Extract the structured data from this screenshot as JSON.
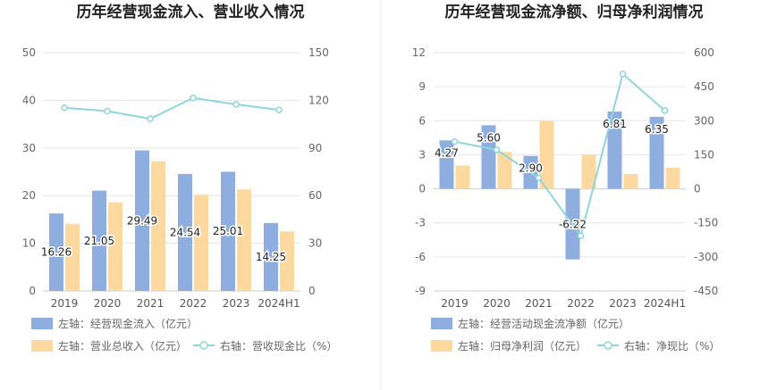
{
  "chart_data": [
    {
      "type": "bar",
      "title": "历年经营现金流入、营业收入情况",
      "categories": [
        "2019",
        "2020",
        "2021",
        "2022",
        "2023",
        "2024H1"
      ],
      "left_axis": {
        "ticks": [
          "0",
          "10",
          "20",
          "30",
          "40",
          "50"
        ],
        "ylim": [
          0,
          50
        ]
      },
      "right_axis": {
        "ticks": [
          "0",
          "30",
          "60",
          "90",
          "120",
          "150"
        ],
        "ylim": [
          0,
          150
        ]
      },
      "series": [
        {
          "name": "左轴：经营现金流入（亿元）",
          "kind": "bar",
          "axis": "left",
          "color": "#8eaedf",
          "values": [
            16.26,
            21.05,
            29.49,
            24.54,
            25.01,
            14.25
          ],
          "labels": [
            "16.26",
            "21.05",
            "29.49",
            "24.54",
            "25.01",
            "14.25"
          ]
        },
        {
          "name": "左轴：营业总收入（亿元）",
          "kind": "bar",
          "axis": "left",
          "color": "#fdd9a0",
          "values": [
            14.1,
            18.6,
            27.2,
            20.2,
            21.3,
            12.5
          ]
        },
        {
          "name": "右轴：营收现金比（%）",
          "kind": "line",
          "axis": "right",
          "color": "#8fd6dc",
          "values": [
            115.3,
            113.2,
            108.4,
            121.5,
            117.4,
            114.0
          ]
        }
      ],
      "grid": true,
      "legend_position": "bottom"
    },
    {
      "type": "bar",
      "title": "历年经营现金流净额、归母净利润情况",
      "categories": [
        "2019",
        "2020",
        "2021",
        "2022",
        "2023",
        "2024H1"
      ],
      "left_axis": {
        "ticks": [
          "-9",
          "-6",
          "-3",
          "0",
          "3",
          "6",
          "9",
          "12"
        ],
        "ylim": [
          -9,
          12
        ]
      },
      "right_axis": {
        "ticks": [
          "-450",
          "-300",
          "-150",
          "0",
          "150",
          "300",
          "450",
          "600"
        ],
        "ylim": [
          -450,
          600
        ]
      },
      "series": [
        {
          "name": "左轴：经营活动现金流净额（亿元）",
          "kind": "bar",
          "axis": "left",
          "color": "#8eaedf",
          "values": [
            4.27,
            5.6,
            2.9,
            -6.22,
            6.81,
            6.35
          ],
          "labels": [
            "4.27",
            "5.60",
            "2.90",
            "-6.22",
            "6.81",
            "6.35"
          ]
        },
        {
          "name": "左轴：归母净利润（亿元）",
          "kind": "bar",
          "axis": "left",
          "color": "#fdd9a0",
          "values": [
            2.05,
            3.25,
            6.0,
            3.0,
            1.3,
            1.85
          ]
        },
        {
          "name": "右轴：净现比（%）",
          "kind": "line",
          "axis": "right",
          "color": "#8fd6dc",
          "values": [
            208,
            172,
            48,
            -207,
            506,
            345
          ]
        }
      ],
      "grid": true,
      "legend_position": "bottom"
    }
  ]
}
